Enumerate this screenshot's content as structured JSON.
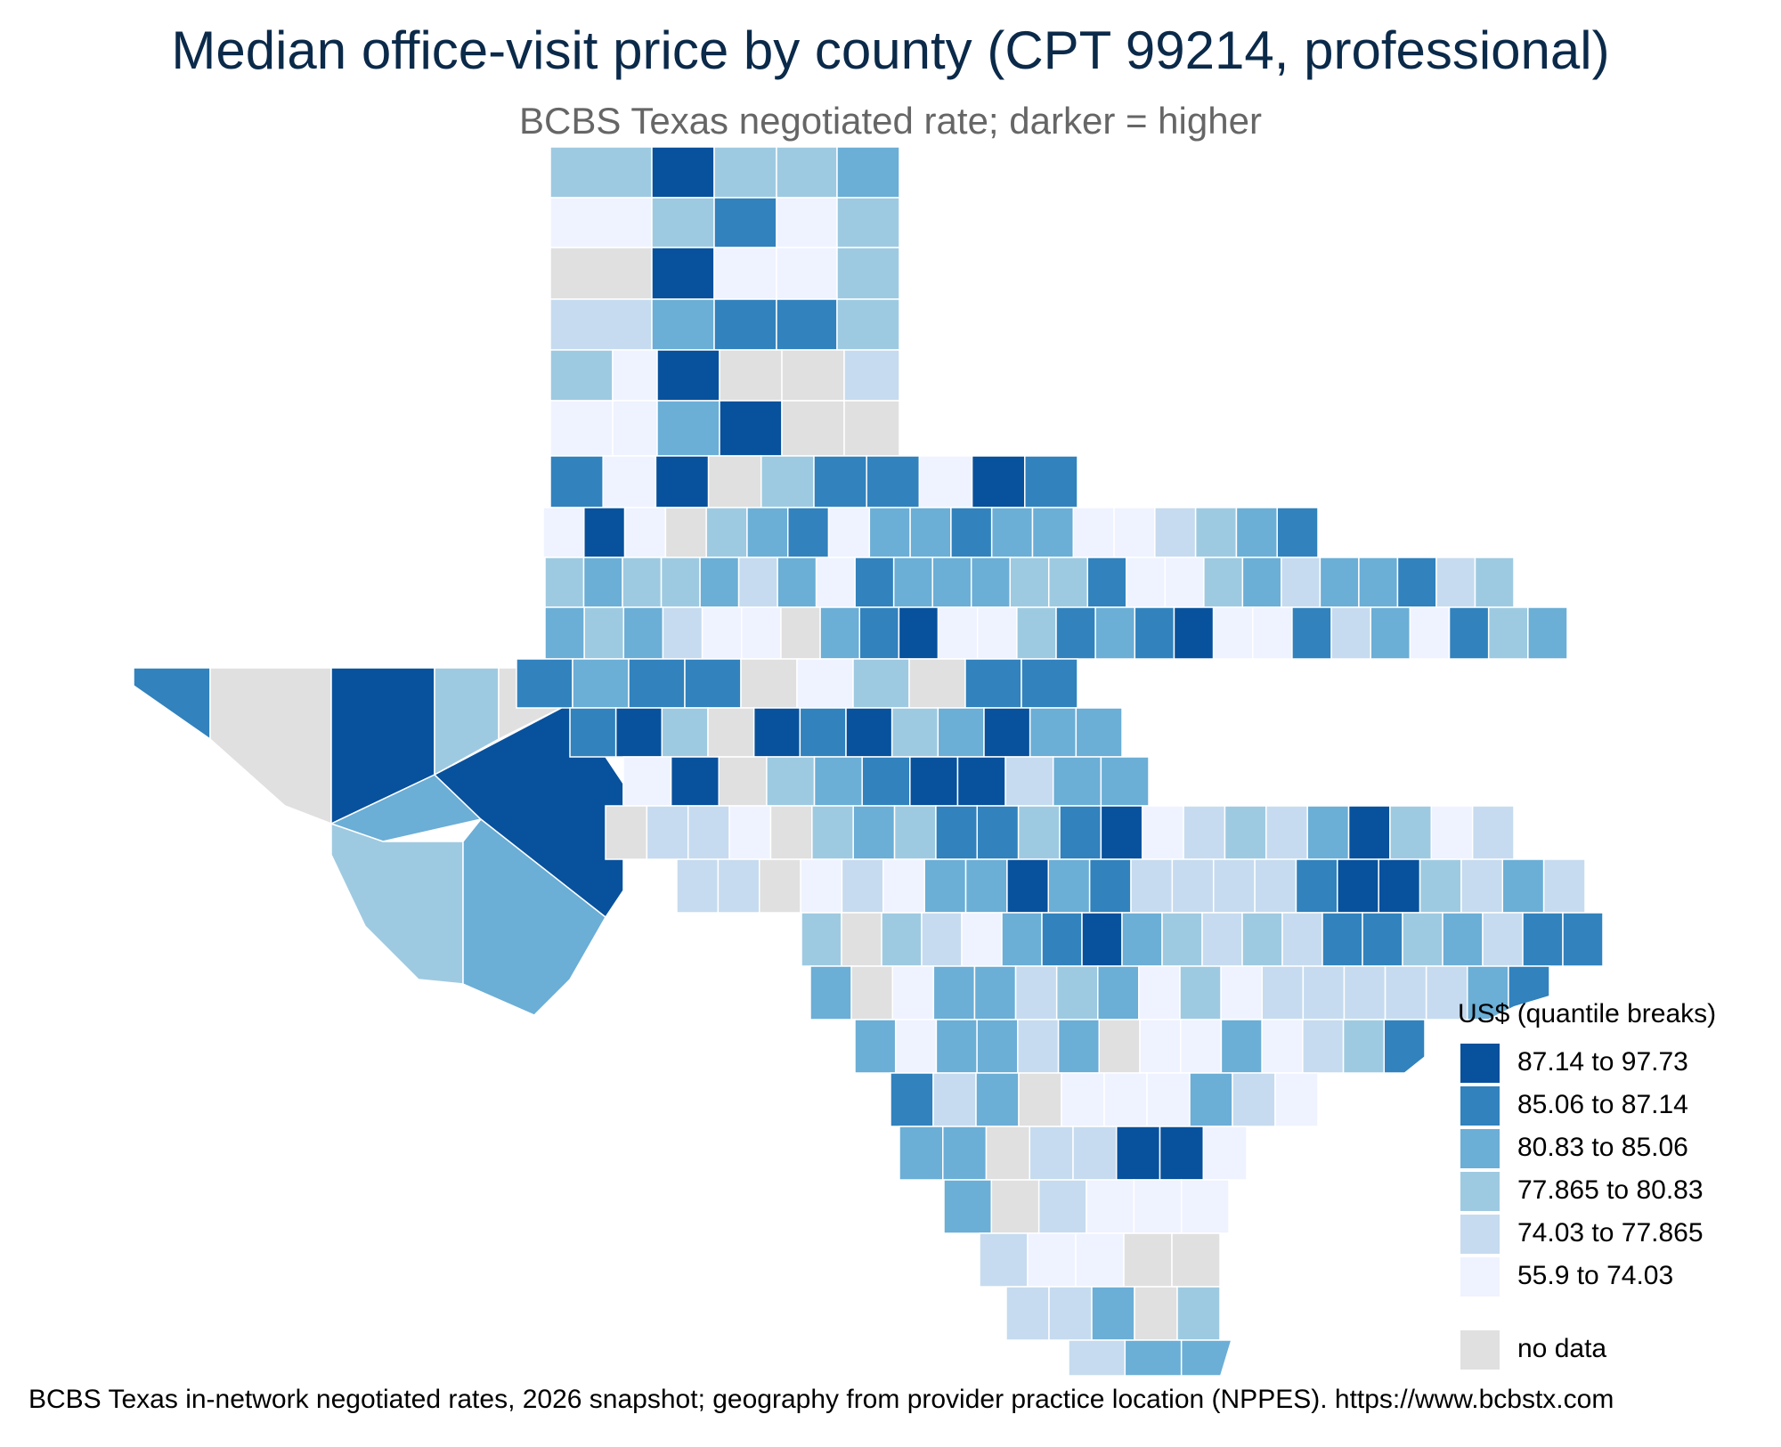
{
  "title": "Median office-visit price by county (CPT 99214, professional)",
  "subtitle": "BCBS Texas negotiated rate; darker = higher",
  "caption": "BCBS Texas in-network negotiated rates, 2026 snapshot; geography from provider practice location (NPPES). https://www.bcbstx.com",
  "legend": {
    "title": "US$ (quantile breaks)",
    "bins": [
      {
        "label": "87.14 to 97.73",
        "color": "#08519c"
      },
      {
        "label": "85.06 to 87.14",
        "color": "#3182bd"
      },
      {
        "label": "80.83 to 85.06",
        "color": "#6baed6"
      },
      {
        "label": "77.865 to 80.83",
        "color": "#9ecae1"
      },
      {
        "label": "74.03 to 77.865",
        "color": "#c6dbef"
      },
      {
        "label": "55.9 to 74.03",
        "color": "#eff3ff"
      }
    ],
    "na": {
      "label": "no data",
      "color": "#e0e0e0"
    }
  },
  "map_data": {
    "region": "Texas",
    "unit": "county",
    "metric": "median negotiated rate, US$",
    "classification": "quantile",
    "panhandle_grid_bins": [
      [
        3,
        0,
        3,
        3,
        2
      ],
      [
        5,
        3,
        1,
        5,
        3
      ],
      [
        -1,
        0,
        5,
        5,
        3
      ],
      [
        4,
        2,
        1,
        1,
        3
      ],
      [
        3,
        5,
        0,
        -1,
        -1,
        4
      ],
      [
        5,
        5,
        2,
        0,
        -1,
        -1,
        -1
      ]
    ],
    "west_texas_bins": [
      [
        1,
        2,
        1,
        1,
        -1,
        5,
        3,
        -1,
        1,
        1
      ],
      [
        1,
        0,
        3,
        -1,
        0,
        1,
        0,
        3,
        2,
        0,
        2,
        2
      ],
      [
        5,
        0,
        -1,
        3,
        2,
        1,
        0,
        0,
        4,
        2,
        2
      ]
    ]
  }
}
